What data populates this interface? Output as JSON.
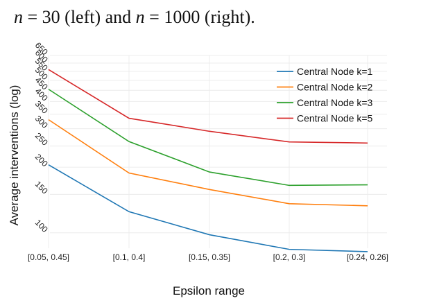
{
  "caption": {
    "text_a": "n",
    "text_b": " = 30 (left) and ",
    "text_c": "n",
    "text_d": " = 1000 (right)."
  },
  "chart_data": {
    "type": "line",
    "xlabel": "Epsilon range",
    "ylabel": "Average interventions (log)",
    "y_scale": "log",
    "ylim": [
      85,
      650
    ],
    "categories": [
      "[0.05, 0.45]",
      "[0.1, 0.4]",
      "[0.15, 0.35]",
      "[0.2, 0.3]",
      "[0.24, 0.26]"
    ],
    "yticks": [
      100,
      150,
      200,
      250,
      300,
      350,
      400,
      450,
      500,
      550,
      600,
      650
    ],
    "grid": true,
    "legend_position": "top-right",
    "series": [
      {
        "name": "Central Node k=1",
        "color": "#1f77b4",
        "values": [
          205,
          125,
          98,
          84,
          82
        ]
      },
      {
        "name": "Central Node k=2",
        "color": "#ff7f0e",
        "values": [
          330,
          188,
          158,
          136,
          133
        ]
      },
      {
        "name": "Central Node k=3",
        "color": "#2ca02c",
        "values": [
          455,
          262,
          190,
          165,
          166
        ]
      },
      {
        "name": "Central Node k=5",
        "color": "#d62728",
        "values": [
          560,
          335,
          292,
          261,
          258
        ]
      }
    ]
  }
}
